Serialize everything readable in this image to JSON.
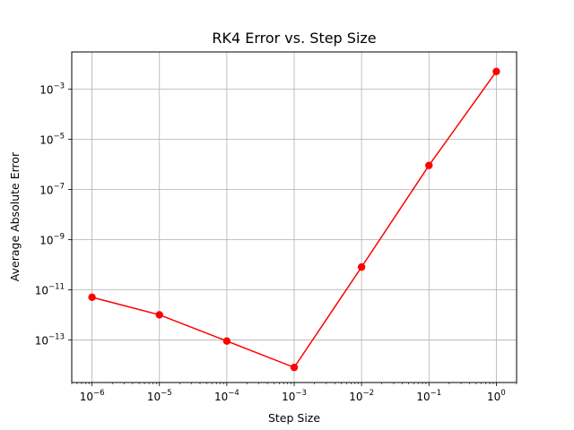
{
  "chart_data": {
    "type": "line",
    "title": "RK4 Error vs. Step Size",
    "xlabel": "Step Size",
    "ylabel": "Average Absolute Error",
    "xscale": "log",
    "yscale": "log",
    "xlim": [
      5e-07,
      2.0
    ],
    "ylim": [
      2e-15,
      0.03
    ],
    "grid": true,
    "series": [
      {
        "x": [
          1e-06,
          1e-05,
          0.0001,
          0.001,
          0.01,
          0.1,
          1
        ],
        "values": [
          5e-12,
          1e-12,
          9e-14,
          8e-15,
          8e-11,
          9e-07,
          0.005
        ],
        "color": "#ff0000",
        "marker": "circle"
      }
    ],
    "x_ticks": [
      {
        "value": 1e-06,
        "base": "10",
        "exp": "−6"
      },
      {
        "value": 1e-05,
        "base": "10",
        "exp": "−5"
      },
      {
        "value": 0.0001,
        "base": "10",
        "exp": "−4"
      },
      {
        "value": 0.001,
        "base": "10",
        "exp": "−3"
      },
      {
        "value": 0.01,
        "base": "10",
        "exp": "−2"
      },
      {
        "value": 0.1,
        "base": "10",
        "exp": "−1"
      },
      {
        "value": 1,
        "base": "10",
        "exp": "0"
      }
    ],
    "y_ticks": [
      {
        "value": 1e-13,
        "base": "10",
        "exp": "−13"
      },
      {
        "value": 1e-11,
        "base": "10",
        "exp": "−11"
      },
      {
        "value": 1e-09,
        "base": "10",
        "exp": "−9"
      },
      {
        "value": 1e-07,
        "base": "10",
        "exp": "−7"
      },
      {
        "value": 1e-05,
        "base": "10",
        "exp": "−5"
      },
      {
        "value": 0.001,
        "base": "10",
        "exp": "−3"
      }
    ]
  }
}
